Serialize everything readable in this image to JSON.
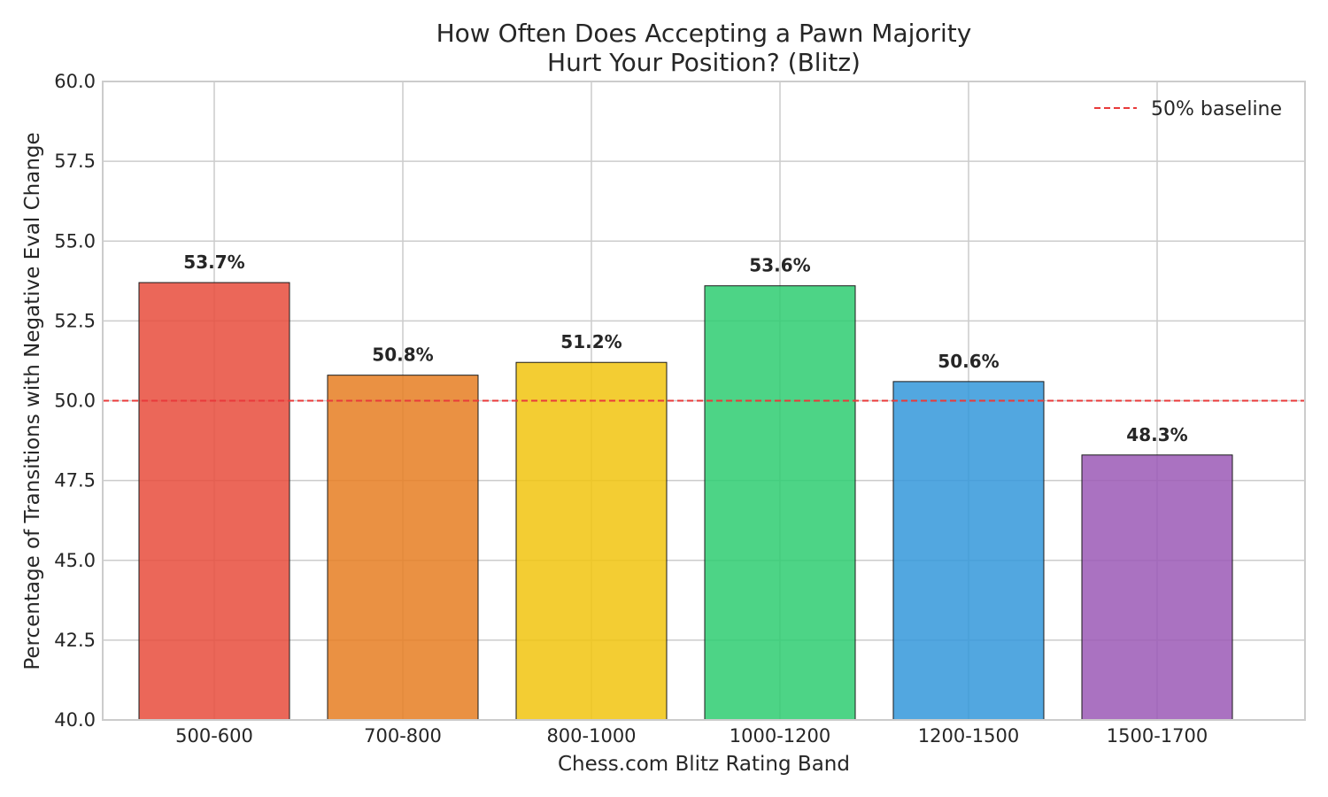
{
  "chart_data": {
    "type": "bar",
    "title_lines": [
      "How Often Does Accepting a Pawn Majority",
      "Hurt Your Position? (Blitz)"
    ],
    "xlabel": "Chess.com Blitz Rating Band",
    "ylabel": "Percentage of Transitions with Negative Eval Change",
    "categories": [
      "500-600",
      "700-800",
      "800-1000",
      "1000-1200",
      "1200-1500",
      "1500-1700"
    ],
    "values": [
      53.7,
      50.8,
      51.2,
      53.6,
      50.6,
      48.3
    ],
    "value_labels": [
      "53.7%",
      "50.8%",
      "51.2%",
      "53.6%",
      "50.6%",
      "48.3%"
    ],
    "colors": [
      "#e74c3c",
      "#e67e22",
      "#f1c40f",
      "#2ecc71",
      "#3498db",
      "#9b59b6"
    ],
    "ylim": [
      40.0,
      60.0
    ],
    "yticks": [
      "40.0",
      "42.5",
      "45.0",
      "47.5",
      "50.0",
      "52.5",
      "55.0",
      "57.5",
      "60.0"
    ],
    "grid": true,
    "baseline": {
      "value": 50,
      "label": "50% baseline",
      "color": "#e83a3a",
      "style": "dashed"
    },
    "legend_position": "top-right"
  }
}
